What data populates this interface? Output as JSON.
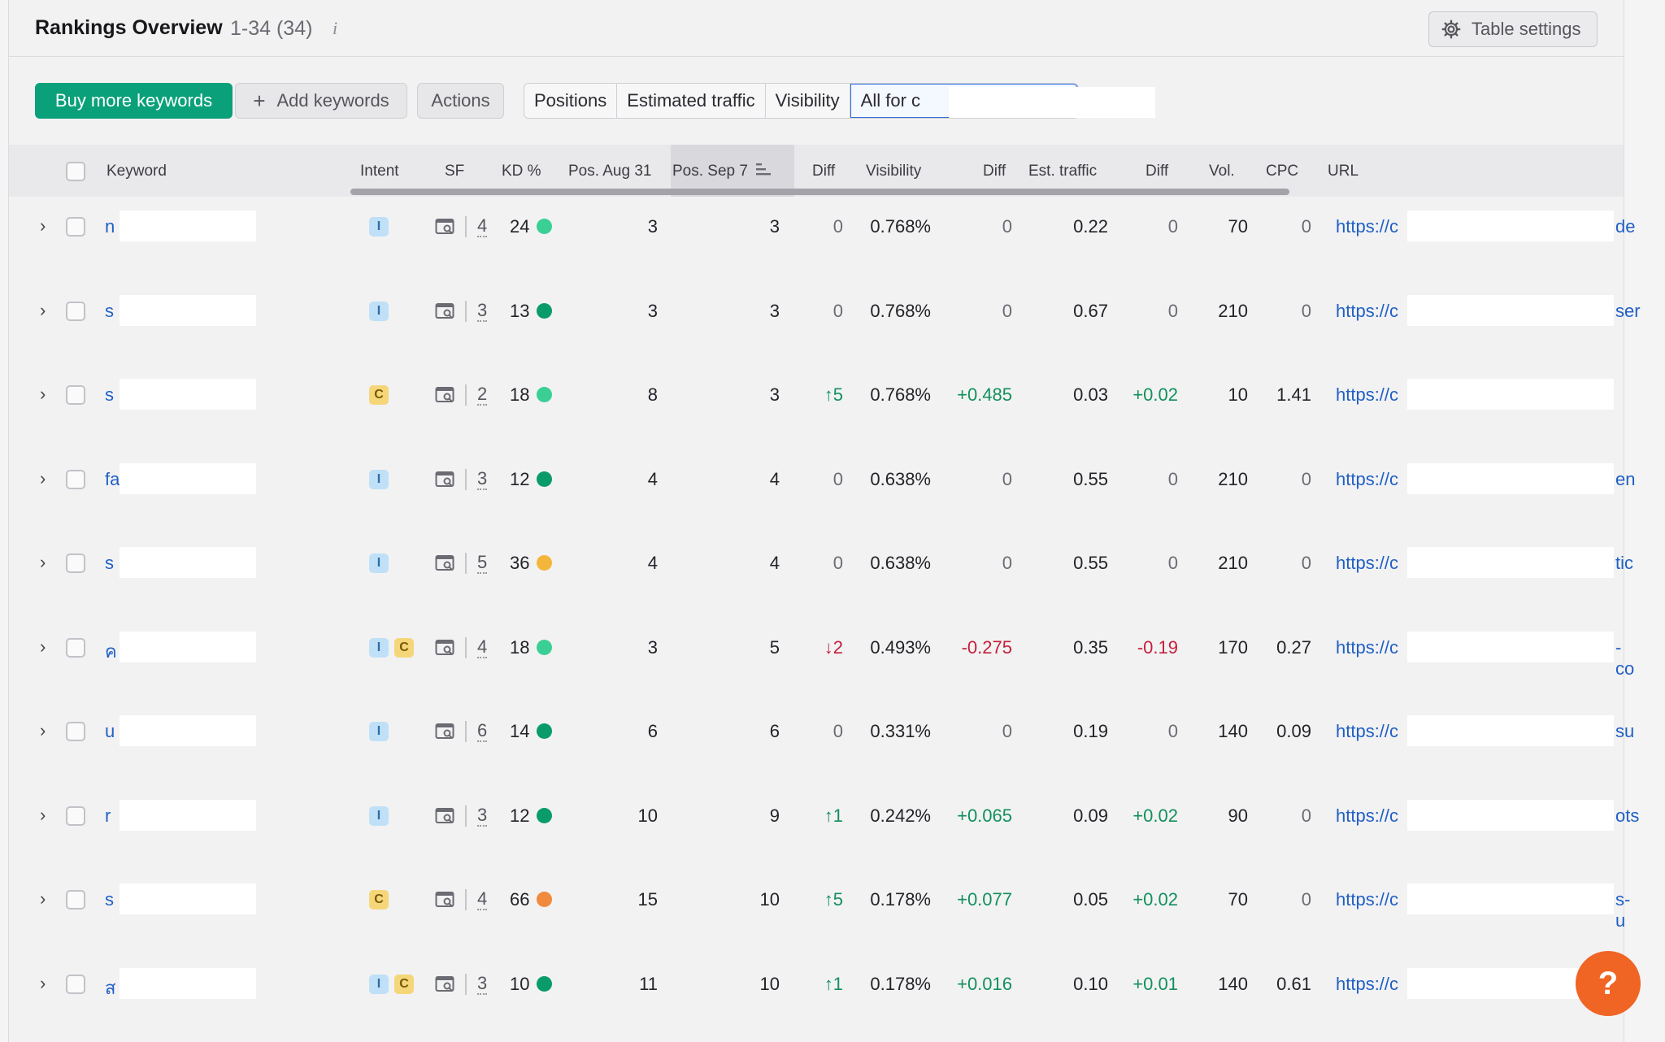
{
  "header": {
    "title": "Rankings Overview",
    "count": "1-34 (34)",
    "info": "i",
    "settings_label": "Table settings"
  },
  "toolbar": {
    "buy_label": "Buy more keywords",
    "add_label": "Add keywords",
    "add_icon": "+",
    "actions_label": "Actions",
    "tabs": [
      "Positions",
      "Estimated traffic",
      "Visibility",
      "All for c"
    ]
  },
  "columns": {
    "keyword": "Keyword",
    "intent": "Intent",
    "sf": "SF",
    "kd": "KD %",
    "pos_aug": "Pos. Aug 31",
    "pos_sep": "Pos. Sep 7",
    "diff1": "Diff",
    "visibility": "Visibility",
    "diff2": "Diff",
    "traffic": "Est. traffic",
    "diff3": "Diff",
    "vol": "Vol.",
    "cpc": "CPC",
    "url": "URL"
  },
  "colors": {
    "kd_green_light": "#3ccf95",
    "kd_green": "#0a9b6a",
    "kd_yellow": "#f3b63a",
    "kd_orange": "#f08a3c",
    "positive": "#12905c",
    "negative": "#c4203b",
    "brand": "#0aa17a"
  },
  "rows": [
    {
      "kw": "n",
      "intent": [
        "I"
      ],
      "sf": "4",
      "kd": "24",
      "kd_color": "#3ccf95",
      "aug": "3",
      "sep": "3",
      "diff": "0",
      "vis": "0.768%",
      "vdiff": "0",
      "traffic": "0.22",
      "tdiff": "0",
      "vol": "70",
      "cpc": "0",
      "url": "https://c",
      "tail": "de"
    },
    {
      "kw": "s",
      "intent": [
        "I"
      ],
      "sf": "3",
      "kd": "13",
      "kd_color": "#0a9b6a",
      "aug": "3",
      "sep": "3",
      "diff": "0",
      "vis": "0.768%",
      "vdiff": "0",
      "traffic": "0.67",
      "tdiff": "0",
      "vol": "210",
      "cpc": "0",
      "url": "https://c",
      "tail": "ser"
    },
    {
      "kw": "s",
      "intent": [
        "C"
      ],
      "sf": "2",
      "kd": "18",
      "kd_color": "#3ccf95",
      "aug": "8",
      "sep": "3",
      "diff": "↑5",
      "diff_class": "pos",
      "vis": "0.768%",
      "vdiff": "+0.485",
      "vdiff_class": "pos",
      "traffic": "0.03",
      "tdiff": "+0.02",
      "tdiff_class": "pos",
      "vol": "10",
      "cpc": "1.41",
      "url": "https://c",
      "tail": ""
    },
    {
      "kw": "fa",
      "intent": [
        "I"
      ],
      "sf": "3",
      "kd": "12",
      "kd_color": "#0a9b6a",
      "aug": "4",
      "sep": "4",
      "diff": "0",
      "vis": "0.638%",
      "vdiff": "0",
      "traffic": "0.55",
      "tdiff": "0",
      "vol": "210",
      "cpc": "0",
      "url": "https://c",
      "tail": "en"
    },
    {
      "kw": "s",
      "intent": [
        "I"
      ],
      "sf": "5",
      "kd": "36",
      "kd_color": "#f3b63a",
      "aug": "4",
      "sep": "4",
      "diff": "0",
      "vis": "0.638%",
      "vdiff": "0",
      "traffic": "0.55",
      "tdiff": "0",
      "vol": "210",
      "cpc": "0",
      "url": "https://c",
      "tail": "tic"
    },
    {
      "kw": "ค",
      "intent": [
        "I",
        "C"
      ],
      "sf": "4",
      "kd": "18",
      "kd_color": "#3ccf95",
      "aug": "3",
      "sep": "5",
      "diff": "↓2",
      "diff_class": "neg",
      "vis": "0.493%",
      "vdiff": "-0.275",
      "vdiff_class": "neg",
      "traffic": "0.35",
      "tdiff": "-0.19",
      "tdiff_class": "neg",
      "vol": "170",
      "cpc": "0.27",
      "url": "https://c",
      "tail": "-co"
    },
    {
      "kw": "u",
      "intent": [
        "I"
      ],
      "sf": "6",
      "kd": "14",
      "kd_color": "#0a9b6a",
      "aug": "6",
      "sep": "6",
      "diff": "0",
      "vis": "0.331%",
      "vdiff": "0",
      "traffic": "0.19",
      "tdiff": "0",
      "vol": "140",
      "cpc": "0.09",
      "url": "https://c",
      "tail": "su"
    },
    {
      "kw": "r",
      "intent": [
        "I"
      ],
      "sf": "3",
      "kd": "12",
      "kd_color": "#0a9b6a",
      "aug": "10",
      "sep": "9",
      "diff": "↑1",
      "diff_class": "pos",
      "vis": "0.242%",
      "vdiff": "+0.065",
      "vdiff_class": "pos",
      "traffic": "0.09",
      "tdiff": "+0.02",
      "tdiff_class": "pos",
      "vol": "90",
      "cpc": "0",
      "url": "https://c",
      "tail": "ots"
    },
    {
      "kw": "s",
      "intent": [
        "C"
      ],
      "sf": "4",
      "kd": "66",
      "kd_color": "#f08a3c",
      "aug": "15",
      "sep": "10",
      "diff": "↑5",
      "diff_class": "pos",
      "vis": "0.178%",
      "vdiff": "+0.077",
      "vdiff_class": "pos",
      "traffic": "0.05",
      "tdiff": "+0.02",
      "tdiff_class": "pos",
      "vol": "70",
      "cpc": "0",
      "url": "https://c",
      "tail": "s-u"
    },
    {
      "kw": "ส",
      "intent": [
        "I",
        "C"
      ],
      "sf": "3",
      "kd": "10",
      "kd_color": "#0a9b6a",
      "aug": "11",
      "sep": "10",
      "diff": "↑1",
      "diff_class": "pos",
      "vis": "0.178%",
      "vdiff": "+0.016",
      "vdiff_class": "pos",
      "traffic": "0.10",
      "tdiff": "+0.01",
      "tdiff_class": "pos",
      "vol": "140",
      "cpc": "0.61",
      "url": "https://c",
      "tail": ""
    }
  ],
  "help": "?"
}
